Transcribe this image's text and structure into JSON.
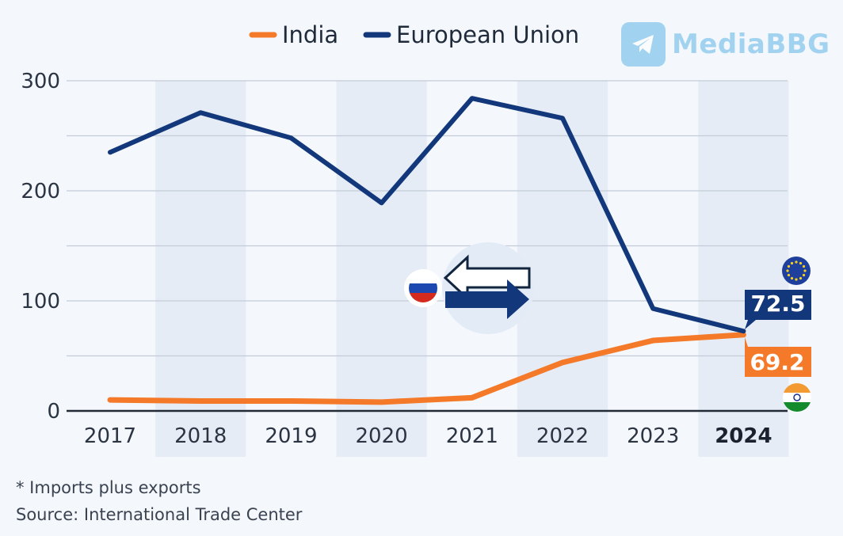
{
  "chart_data": {
    "type": "line",
    "categories": [
      "2017",
      "2018",
      "2019",
      "2020",
      "2021",
      "2022",
      "2023",
      "2024"
    ],
    "highlight_category": "2024",
    "series": [
      {
        "name": "India",
        "color": "#f47a2a",
        "values": [
          10,
          9,
          9,
          8,
          12,
          44,
          64,
          69.2
        ]
      },
      {
        "name": "European Union",
        "color": "#12377a",
        "values": [
          235,
          271,
          248,
          189,
          284,
          266,
          93,
          72.5
        ]
      }
    ],
    "end_labels": {
      "India": "69.2",
      "European Union": "72.5"
    },
    "yticks": [
      "0",
      "100",
      "200",
      "300"
    ],
    "ylim": [
      0,
      300
    ],
    "grid": true
  },
  "footnote": "* Imports plus exports",
  "source": "Source: International Trade Center",
  "watermark": {
    "text": "MediaBBG",
    "color": "#5fb6e8"
  }
}
